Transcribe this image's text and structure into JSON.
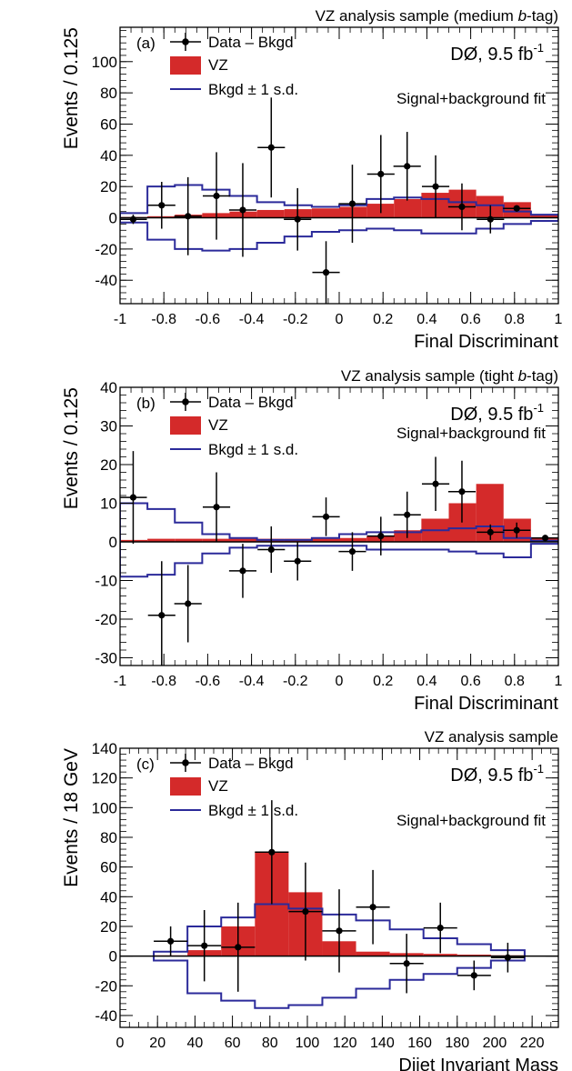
{
  "chart_data": [
    {
      "type": "bar",
      "panel_label": "(a)",
      "title": "VZ analysis sample (medium b-tag)",
      "title_pre": "VZ analysis sample (medium ",
      "title_italic": "b",
      "title_post": "-tag)",
      "experiment": "DØ, 9.5 fb",
      "experiment_sup": "-1",
      "fit_label": "Signal+background fit",
      "xlabel": "Final Discriminant",
      "ylabel": "Events / 0.125",
      "xlim": [
        -1,
        1
      ],
      "ylim": [
        -55,
        122
      ],
      "x_ticks": [
        -1,
        -0.8,
        -0.6,
        -0.4,
        -0.2,
        0,
        0.2,
        0.4,
        0.6,
        0.8,
        1
      ],
      "x_tick_labels": [
        "-1",
        "-0.8",
        "-0.6",
        "-0.4",
        "-0.2",
        "0",
        "0.2",
        "0.4",
        "0.6",
        "0.8",
        "1"
      ],
      "y_ticks": [
        -40,
        -20,
        0,
        20,
        40,
        60,
        80,
        100
      ],
      "y_tick_labels": [
        "-40",
        "-20",
        "0",
        "20",
        "40",
        "60",
        "80",
        "100"
      ],
      "legend": {
        "data": "Data – Bkgd",
        "signal": "VZ",
        "band": "Bkgd ± 1 s.d."
      },
      "bin_edges": [
        -1,
        -0.875,
        -0.75,
        -0.625,
        -0.5,
        -0.375,
        -0.25,
        -0.125,
        0,
        0.125,
        0.25,
        0.375,
        0.5,
        0.625,
        0.75,
        0.875,
        1
      ],
      "series": [
        {
          "name": "VZ",
          "values": [
            0.5,
            1,
            2,
            3,
            4,
            5,
            5.5,
            6,
            7,
            9,
            12,
            16,
            18,
            14,
            10,
            2
          ]
        },
        {
          "name": "Bkgd + 1 s.d.",
          "values": [
            3,
            20,
            21,
            18,
            14,
            10,
            8,
            7,
            8,
            12,
            13,
            12,
            10,
            8,
            4,
            2
          ]
        },
        {
          "name": "Bkgd - 1 s.d.",
          "values": [
            -3,
            -14,
            -20,
            -21,
            -20,
            -16,
            -12,
            -9,
            -8,
            -7,
            -8,
            -10,
            -10,
            -7,
            -4,
            -2
          ]
        }
      ],
      "data_points": [
        {
          "x": -0.94,
          "y": -1,
          "err": 3
        },
        {
          "x": -0.81,
          "y": 8,
          "err": 15
        },
        {
          "x": -0.69,
          "y": 1,
          "err": 25
        },
        {
          "x": -0.56,
          "y": 14,
          "err": 28
        },
        {
          "x": -0.44,
          "y": 5,
          "err": 30
        },
        {
          "x": -0.31,
          "y": 45,
          "err": 32
        },
        {
          "x": -0.19,
          "y": -1,
          "err": 20
        },
        {
          "x": -0.06,
          "y": -35,
          "err": 20
        },
        {
          "x": 0.06,
          "y": 9,
          "err": 25
        },
        {
          "x": 0.19,
          "y": 28,
          "err": 25
        },
        {
          "x": 0.31,
          "y": 33,
          "err": 22
        },
        {
          "x": 0.44,
          "y": 20,
          "err": 20
        },
        {
          "x": 0.56,
          "y": 7,
          "err": 15
        },
        {
          "x": 0.69,
          "y": -1,
          "err": 9
        },
        {
          "x": 0.81,
          "y": 6,
          "err": 2
        }
      ]
    },
    {
      "type": "bar",
      "panel_label": "(b)",
      "title": "VZ analysis sample (tight b-tag)",
      "title_pre": "VZ analysis sample (tight ",
      "title_italic": "b",
      "title_post": "-tag)",
      "experiment": "DØ, 9.5 fb",
      "experiment_sup": "-1",
      "fit_label": "Signal+background fit",
      "xlabel": "Final Discriminant",
      "ylabel": "Events / 0.125",
      "xlim": [
        -1,
        1
      ],
      "ylim": [
        -32,
        40
      ],
      "x_ticks": [
        -1,
        -0.8,
        -0.6,
        -0.4,
        -0.2,
        0,
        0.2,
        0.4,
        0.6,
        0.8,
        1
      ],
      "x_tick_labels": [
        "-1",
        "-0.8",
        "-0.6",
        "-0.4",
        "-0.2",
        "0",
        "0.2",
        "0.4",
        "0.6",
        "0.8",
        "1"
      ],
      "y_ticks": [
        -30,
        -20,
        -10,
        0,
        10,
        20,
        30,
        40
      ],
      "y_tick_labels": [
        "-30",
        "-20",
        "-10",
        "0",
        "10",
        "20",
        "30",
        "40"
      ],
      "legend": {
        "data": "Data – Bkgd",
        "signal": "VZ",
        "band": "Bkgd ± 1 s.d."
      },
      "bin_edges": [
        -1,
        -0.875,
        -0.75,
        -0.625,
        -0.5,
        -0.375,
        -0.25,
        -0.125,
        0,
        0.125,
        0.25,
        0.375,
        0.5,
        0.625,
        0.75,
        0.875,
        1
      ],
      "series": [
        {
          "name": "VZ",
          "values": [
            0.5,
            0.8,
            0.8,
            0.8,
            0.8,
            0.8,
            0.8,
            0.8,
            1,
            1.5,
            3,
            6,
            10,
            15,
            6,
            1
          ]
        },
        {
          "name": "Bkgd + 1 s.d.",
          "values": [
            10,
            8.5,
            5,
            2,
            1,
            0.5,
            0.5,
            1,
            2,
            2.5,
            2.5,
            3,
            3.5,
            4,
            1,
            0.3
          ]
        },
        {
          "name": "Bkgd - 1 s.d.",
          "values": [
            -9,
            -8.5,
            -5.5,
            -3,
            -1.5,
            -1,
            -1,
            -1,
            -1,
            -2,
            -2,
            -2,
            -2.5,
            -3,
            -4,
            -0.5
          ]
        }
      ],
      "data_points": [
        {
          "x": -0.94,
          "y": 11.5,
          "err": 12
        },
        {
          "x": -0.81,
          "y": -19,
          "err": 14
        },
        {
          "x": -0.69,
          "y": -16,
          "err": 10
        },
        {
          "x": -0.56,
          "y": 9,
          "err": 9
        },
        {
          "x": -0.44,
          "y": -7.5,
          "err": 7
        },
        {
          "x": -0.31,
          "y": -2,
          "err": 6
        },
        {
          "x": -0.19,
          "y": -5,
          "err": 5
        },
        {
          "x": -0.06,
          "y": 6.5,
          "err": 5
        },
        {
          "x": 0.06,
          "y": -2.5,
          "err": 5
        },
        {
          "x": 0.19,
          "y": 1.5,
          "err": 5
        },
        {
          "x": 0.31,
          "y": 7,
          "err": 6
        },
        {
          "x": 0.44,
          "y": 15,
          "err": 7
        },
        {
          "x": 0.56,
          "y": 13,
          "err": 8
        },
        {
          "x": 0.69,
          "y": 2.5,
          "err": 2
        },
        {
          "x": 0.81,
          "y": 3,
          "err": 2
        },
        {
          "x": 0.94,
          "y": 1,
          "err": 0.5
        }
      ]
    },
    {
      "type": "bar",
      "panel_label": "(c)",
      "title": "VZ analysis sample",
      "title_pre": "VZ analysis sample",
      "title_italic": "",
      "title_post": "",
      "experiment": "DØ, 9.5 fb",
      "experiment_sup": "-1",
      "fit_label": "Signal+background fit",
      "xlabel": "Dijet Invariant Mass",
      "ylabel": "Events / 18 GeV",
      "xlim": [
        0,
        234
      ],
      "ylim": [
        -48,
        140
      ],
      "x_ticks": [
        0,
        20,
        40,
        60,
        80,
        100,
        120,
        140,
        160,
        180,
        200,
        220
      ],
      "x_tick_labels": [
        "0",
        "20",
        "40",
        "60",
        "80",
        "100",
        "120",
        "140",
        "160",
        "180",
        "200",
        "220"
      ],
      "y_ticks": [
        -40,
        -20,
        0,
        20,
        40,
        60,
        80,
        100,
        120,
        140
      ],
      "y_tick_labels": [
        "-40",
        "-20",
        "0",
        "20",
        "40",
        "60",
        "80",
        "100",
        "120",
        "140"
      ],
      "legend": {
        "data": "Data – Bkgd",
        "signal": "VZ",
        "band": "Bkgd ± 1 s.d."
      },
      "bin_edges": [
        18,
        36,
        54,
        72,
        90,
        108,
        126,
        144,
        162,
        180,
        198,
        216
      ],
      "series": [
        {
          "name": "VZ",
          "values": [
            0.5,
            4,
            20,
            70,
            43,
            10,
            3,
            2,
            1.5,
            1,
            0.5
          ]
        },
        {
          "name": "Bkgd + 1 s.d.",
          "values": [
            3,
            20,
            26,
            35,
            32,
            28,
            24,
            18,
            12,
            8,
            4
          ]
        },
        {
          "name": "Bkgd - 1 s.d.",
          "values": [
            -3,
            -25,
            -30,
            -35,
            -33,
            -28,
            -22,
            -16,
            -12,
            -8,
            -3
          ]
        }
      ],
      "data_points": [
        {
          "x": 27,
          "y": 10,
          "err": 10
        },
        {
          "x": 45,
          "y": 7,
          "err": 24
        },
        {
          "x": 63,
          "y": 6,
          "err": 30
        },
        {
          "x": 81,
          "y": 70,
          "err": 35
        },
        {
          "x": 99,
          "y": 30,
          "err": 33
        },
        {
          "x": 117,
          "y": 17,
          "err": 28
        },
        {
          "x": 135,
          "y": 33,
          "err": 25
        },
        {
          "x": 153,
          "y": -5,
          "err": 20
        },
        {
          "x": 171,
          "y": 19,
          "err": 17
        },
        {
          "x": 189,
          "y": -13,
          "err": 10
        },
        {
          "x": 207,
          "y": -1,
          "err": 10
        }
      ]
    }
  ]
}
